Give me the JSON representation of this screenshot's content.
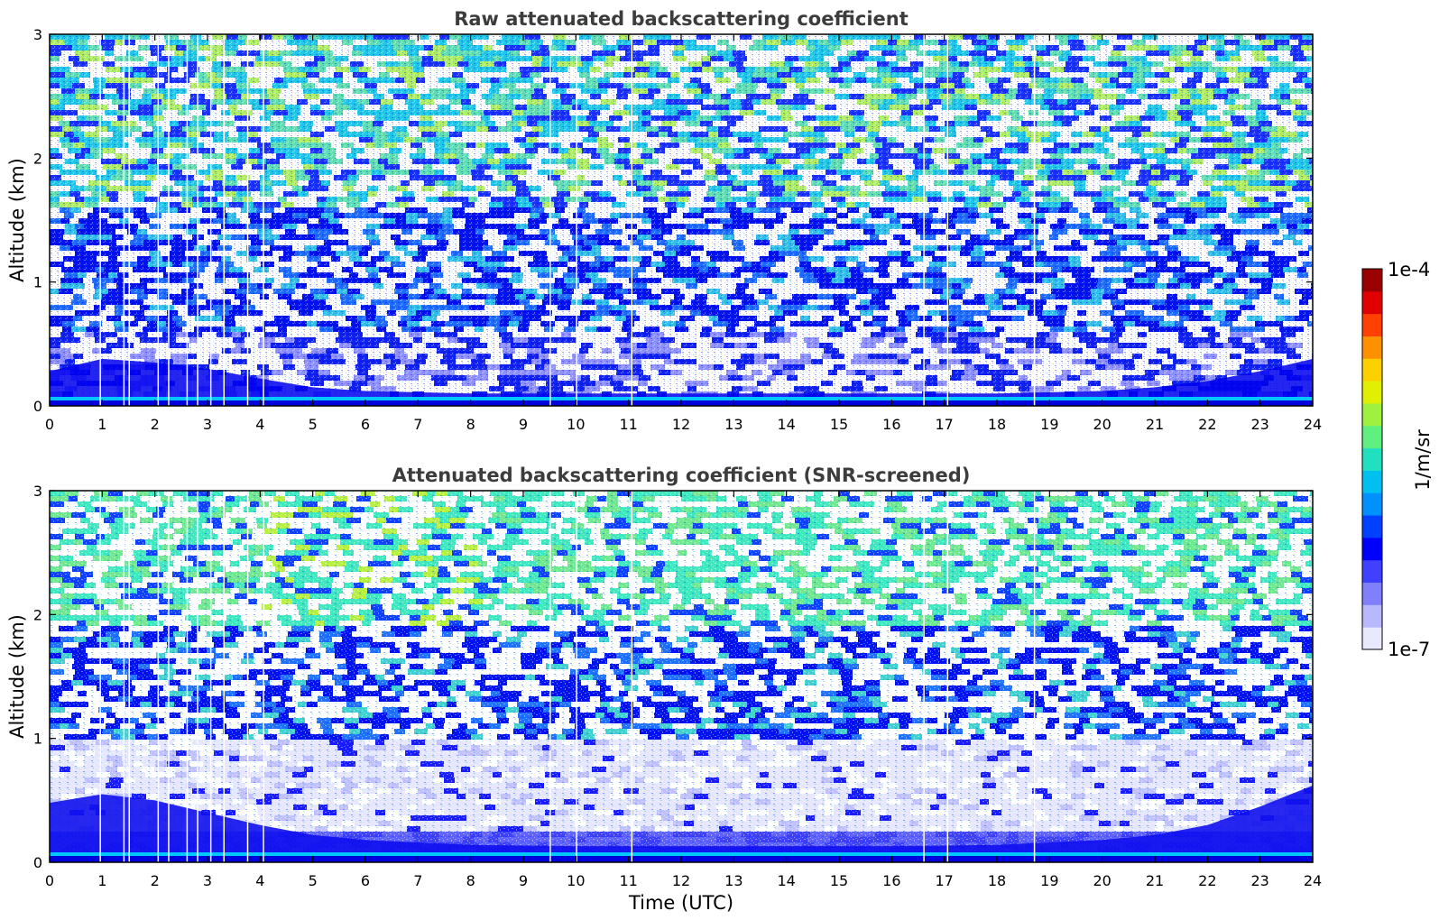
{
  "chart_data": [
    {
      "type": "heatmap",
      "title": "Raw attenuated backscattering coefficient",
      "ylabel": "Altitude (km)",
      "xlabel": "",
      "xlim": [
        0,
        24
      ],
      "ylim": [
        0,
        3
      ],
      "x_ticks": [
        0,
        1,
        2,
        3,
        4,
        5,
        6,
        7,
        8,
        9,
        10,
        11,
        12,
        13,
        14,
        15,
        16,
        17,
        18,
        19,
        20,
        21,
        22,
        23,
        24
      ],
      "y_ticks": [
        0,
        1,
        2,
        3
      ],
      "x_tick_labels": [
        "0",
        "1",
        "2",
        "3",
        "4",
        "5",
        "6",
        "7",
        "8",
        "9",
        "10",
        "11",
        "12",
        "13",
        "14",
        "15",
        "16",
        "17",
        "18",
        "19",
        "20",
        "21",
        "22",
        "23",
        "24"
      ],
      "y_tick_labels": [
        "0",
        "1",
        "2",
        "3"
      ],
      "data_gaps_utc": [
        0.95,
        1.4,
        1.5,
        2.05,
        2.25,
        2.6,
        2.8,
        3.05,
        3.3,
        3.75,
        4.05,
        9.5,
        10.0,
        11.05,
        16.6,
        17.05,
        18.7
      ],
      "boundary_layer_top_km": {
        "x": [
          0,
          1,
          2,
          3,
          4,
          5,
          6,
          8,
          10,
          12,
          14,
          16,
          18,
          20,
          21,
          22,
          23,
          24
        ],
        "y": [
          0.28,
          0.38,
          0.35,
          0.3,
          0.22,
          0.15,
          0.12,
          0.1,
          0.1,
          0.1,
          0.1,
          0.1,
          0.1,
          0.12,
          0.15,
          0.2,
          0.28,
          0.38
        ]
      }
    },
    {
      "type": "heatmap",
      "title": "Attenuated backscattering coefficient (SNR-screened)",
      "ylabel": "Altitude (km)",
      "xlabel": "Time (UTC)",
      "xlim": [
        0,
        24
      ],
      "ylim": [
        0,
        3
      ],
      "x_ticks": [
        0,
        1,
        2,
        3,
        4,
        5,
        6,
        7,
        8,
        9,
        10,
        11,
        12,
        13,
        14,
        15,
        16,
        17,
        18,
        19,
        20,
        21,
        22,
        23,
        24
      ],
      "y_ticks": [
        0,
        1,
        2,
        3
      ],
      "x_tick_labels": [
        "0",
        "1",
        "2",
        "3",
        "4",
        "5",
        "6",
        "7",
        "8",
        "9",
        "10",
        "11",
        "12",
        "13",
        "14",
        "15",
        "16",
        "17",
        "18",
        "19",
        "20",
        "21",
        "22",
        "23",
        "24"
      ],
      "y_tick_labels": [
        "0",
        "1",
        "2",
        "3"
      ],
      "data_gaps_utc": [
        0.95,
        1.4,
        1.5,
        2.05,
        2.25,
        2.6,
        2.8,
        3.05,
        3.3,
        3.75,
        4.05,
        9.5,
        10.0,
        11.05,
        16.6,
        17.05,
        18.7
      ],
      "boundary_layer_top_km": {
        "x": [
          0,
          1,
          2,
          3,
          4,
          5,
          6,
          8,
          10,
          12,
          14,
          16,
          18,
          20,
          21,
          22,
          23,
          24
        ],
        "y": [
          0.48,
          0.55,
          0.5,
          0.4,
          0.3,
          0.22,
          0.18,
          0.14,
          0.13,
          0.13,
          0.13,
          0.13,
          0.14,
          0.18,
          0.22,
          0.3,
          0.45,
          0.62
        ]
      }
    }
  ],
  "colorbar": {
    "label": "1/m/sr",
    "max_label": "1e-4",
    "min_label": "1e-7",
    "scale": "log",
    "range": [
      1e-07,
      0.0001
    ],
    "colors": [
      "#e8e8ff",
      "#b8b8ff",
      "#8080ff",
      "#4040ff",
      "#0000ff",
      "#0040ff",
      "#0090ff",
      "#00c0f0",
      "#20e0c0",
      "#60f080",
      "#a0f040",
      "#e0f000",
      "#ffd000",
      "#ff9000",
      "#ff4000",
      "#e00000",
      "#9a0000"
    ]
  }
}
